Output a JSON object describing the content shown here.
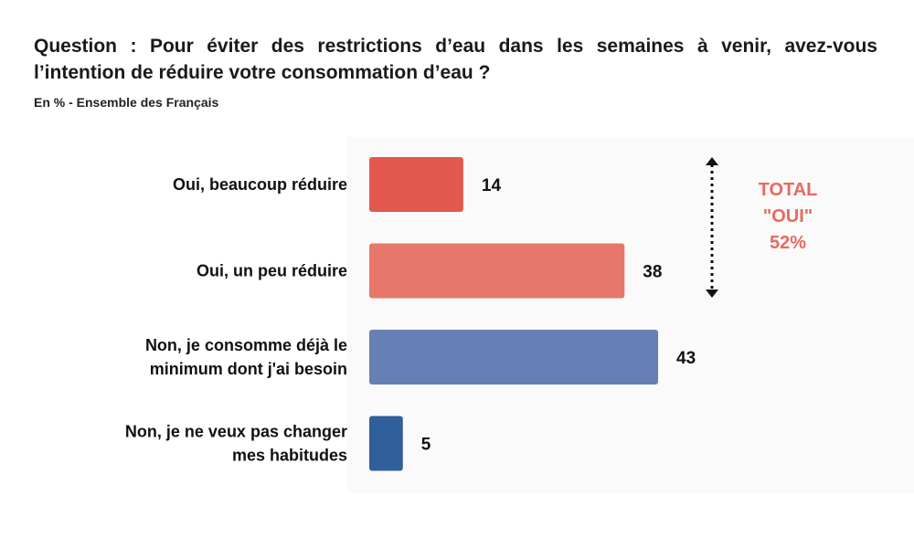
{
  "header": {
    "title": "Question : Pour éviter des restrictions d’eau dans les semaines à venir, avez-vous l’intention de réduire votre consommation d’eau ?",
    "subtitle": "En % - Ensemble des Français"
  },
  "total": {
    "line1": "TOTAL",
    "line2": "\"OUI\"",
    "line3": "52%",
    "color": "#e76a5e"
  },
  "chart_data": {
    "type": "bar",
    "orientation": "horizontal",
    "categories": [
      [
        "Oui, beaucoup réduire"
      ],
      [
        "Oui, un peu réduire"
      ],
      [
        "Non, je consomme déjà le",
        "minimum dont j'ai besoin"
      ],
      [
        "Non, je ne veux pas changer",
        "mes habitudes"
      ]
    ],
    "values": [
      14,
      38,
      43,
      5
    ],
    "colors": [
      "#e2584d",
      "#e8776b",
      "#6680b5",
      "#315f9c"
    ],
    "xlim": [
      0,
      100
    ],
    "grid": false,
    "legend": "none"
  }
}
